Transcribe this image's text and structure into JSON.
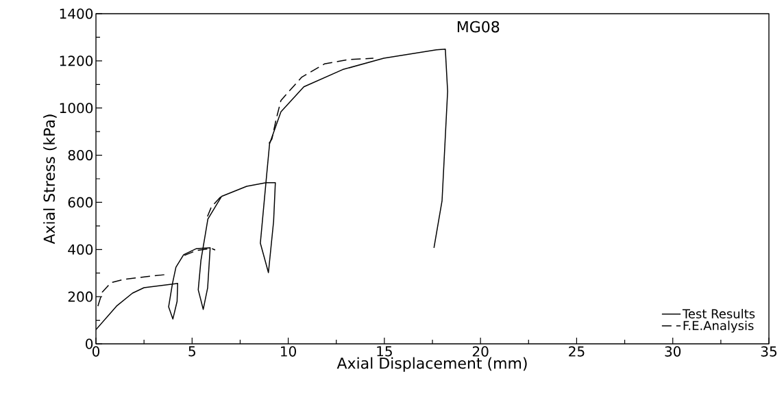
{
  "chart_data": {
    "type": "line",
    "xlabel": "Axial Displacement (mm)",
    "ylabel": "Axial Stress (kPa)",
    "annotations": [
      "MG08"
    ],
    "xlim": [
      0,
      35
    ],
    "ylim": [
      0,
      1400
    ],
    "xticks": [
      0,
      5,
      10,
      15,
      20,
      25,
      30,
      35
    ],
    "yticks": [
      0,
      200,
      400,
      600,
      800,
      1000,
      1200,
      1400
    ],
    "grid": false,
    "legend": "bottom right",
    "marker": "none",
    "series": [
      {
        "name": "Test Results",
        "color": "#000000",
        "line_style": "solid",
        "x": [
          0,
          1.07,
          1.9,
          2.5,
          4.25,
          4.22,
          4.0,
          3.78,
          3.98,
          4.16,
          4.56,
          5.23,
          5.94,
          5.81,
          5.58,
          5.32,
          5.46,
          5.7,
          5.82,
          6.53,
          7.84,
          8.84,
          9.33,
          9.24,
          8.97,
          8.55,
          8.84,
          9.03,
          9.62,
          10.81,
          12.83,
          14.97,
          17.7,
          18.17,
          18.29,
          18.0,
          17.58
        ],
        "values": [
          60,
          160,
          215,
          238,
          256,
          180,
          105,
          157,
          256,
          325,
          378,
          404,
          407,
          238,
          146,
          229,
          354,
          470,
          529,
          625,
          668,
          683,
          683,
          520,
          302,
          427,
          683,
          848,
          984,
          1090,
          1163,
          1211,
          1247,
          1250,
          1071,
          607,
          407
        ]
      },
      {
        "name": "F.E.Analysis",
        "color": "#000000",
        "line_style": "dashed",
        "x": [
          0.1,
          0.33,
          0.77,
          1.43,
          2.85,
          3.56,
          4.0,
          4.6,
          5.2,
          6.0,
          6.2,
          6.1,
          5.8,
          6.0,
          6.5,
          7.0,
          9.0,
          9.15,
          9.38,
          9.62,
          10.69,
          11.88,
          13.19,
          14.43
        ],
        "values": [
          160,
          219,
          259,
          273,
          287,
          293,
          null,
          375,
          395,
          405,
          398,
          null,
          540,
          580,
          625,
          null,
          850,
          868,
          955,
          1032,
          1130,
          1187,
          1206,
          1211
        ]
      }
    ]
  }
}
